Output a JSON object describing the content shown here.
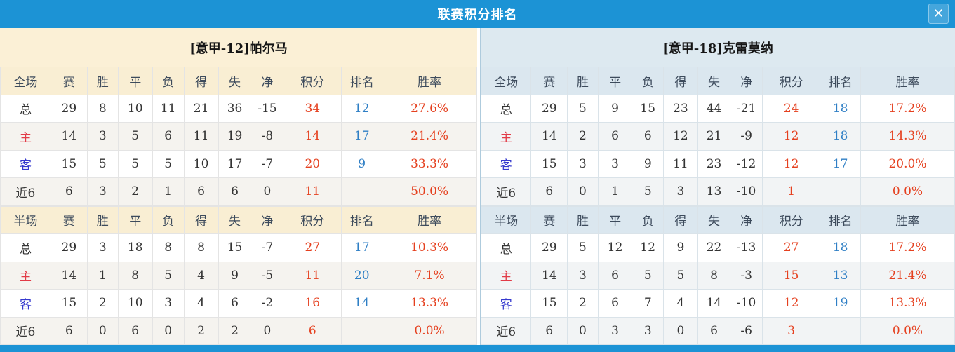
{
  "window": {
    "title": "联赛积分排名",
    "close_icon": "✕"
  },
  "colors": {
    "accent_blue": "#1C93D5",
    "left_header_bg": "#FBF0D6",
    "right_header_bg": "#DDE9F0",
    "value_red": "#E5401F",
    "rank_blue": "#2F7FC5",
    "home_label_red": "#E23B47",
    "away_label_blue": "#3539CE"
  },
  "stat_columns": [
    "赛",
    "胜",
    "平",
    "负",
    "得",
    "失",
    "净",
    "积分",
    "排名",
    "胜率"
  ],
  "teams": [
    {
      "name": "[意甲-12]帕尔马",
      "sections": [
        {
          "scope_label": "全场",
          "rows": [
            {
              "label": "总",
              "type": "total",
              "stats": [
                "29",
                "8",
                "10",
                "11",
                "21",
                "36",
                "-15"
              ],
              "points": "34",
              "rank": "12",
              "rate": "27.6%"
            },
            {
              "label": "主",
              "type": "home",
              "stats": [
                "14",
                "3",
                "5",
                "6",
                "11",
                "19",
                "-8"
              ],
              "points": "14",
              "rank": "17",
              "rate": "21.4%"
            },
            {
              "label": "客",
              "type": "away",
              "stats": [
                "15",
                "5",
                "5",
                "5",
                "10",
                "17",
                "-7"
              ],
              "points": "20",
              "rank": "9",
              "rate": "33.3%"
            },
            {
              "label": "近6",
              "type": "last6",
              "stats": [
                "6",
                "3",
                "2",
                "1",
                "6",
                "6",
                "0"
              ],
              "points": "11",
              "rank": "",
              "rate": "50.0%"
            }
          ]
        },
        {
          "scope_label": "半场",
          "rows": [
            {
              "label": "总",
              "type": "total",
              "stats": [
                "29",
                "3",
                "18",
                "8",
                "8",
                "15",
                "-7"
              ],
              "points": "27",
              "rank": "17",
              "rate": "10.3%"
            },
            {
              "label": "主",
              "type": "home",
              "stats": [
                "14",
                "1",
                "8",
                "5",
                "4",
                "9",
                "-5"
              ],
              "points": "11",
              "rank": "20",
              "rate": "7.1%"
            },
            {
              "label": "客",
              "type": "away",
              "stats": [
                "15",
                "2",
                "10",
                "3",
                "4",
                "6",
                "-2"
              ],
              "points": "16",
              "rank": "14",
              "rate": "13.3%"
            },
            {
              "label": "近6",
              "type": "last6",
              "stats": [
                "6",
                "0",
                "6",
                "0",
                "2",
                "2",
                "0"
              ],
              "points": "6",
              "rank": "",
              "rate": "0.0%"
            }
          ]
        }
      ]
    },
    {
      "name": "[意甲-18]克雷莫纳",
      "sections": [
        {
          "scope_label": "全场",
          "rows": [
            {
              "label": "总",
              "type": "total",
              "stats": [
                "29",
                "5",
                "9",
                "15",
                "23",
                "44",
                "-21"
              ],
              "points": "24",
              "rank": "18",
              "rate": "17.2%"
            },
            {
              "label": "主",
              "type": "home",
              "stats": [
                "14",
                "2",
                "6",
                "6",
                "12",
                "21",
                "-9"
              ],
              "points": "12",
              "rank": "18",
              "rate": "14.3%"
            },
            {
              "label": "客",
              "type": "away",
              "stats": [
                "15",
                "3",
                "3",
                "9",
                "11",
                "23",
                "-12"
              ],
              "points": "12",
              "rank": "17",
              "rate": "20.0%"
            },
            {
              "label": "近6",
              "type": "last6",
              "stats": [
                "6",
                "0",
                "1",
                "5",
                "3",
                "13",
                "-10"
              ],
              "points": "1",
              "rank": "",
              "rate": "0.0%"
            }
          ]
        },
        {
          "scope_label": "半场",
          "rows": [
            {
              "label": "总",
              "type": "total",
              "stats": [
                "29",
                "5",
                "12",
                "12",
                "9",
                "22",
                "-13"
              ],
              "points": "27",
              "rank": "18",
              "rate": "17.2%"
            },
            {
              "label": "主",
              "type": "home",
              "stats": [
                "14",
                "3",
                "6",
                "5",
                "5",
                "8",
                "-3"
              ],
              "points": "15",
              "rank": "13",
              "rate": "21.4%"
            },
            {
              "label": "客",
              "type": "away",
              "stats": [
                "15",
                "2",
                "6",
                "7",
                "4",
                "14",
                "-10"
              ],
              "points": "12",
              "rank": "19",
              "rate": "13.3%"
            },
            {
              "label": "近6",
              "type": "last6",
              "stats": [
                "6",
                "0",
                "3",
                "3",
                "0",
                "6",
                "-6"
              ],
              "points": "3",
              "rank": "",
              "rate": "0.0%"
            }
          ]
        }
      ]
    }
  ]
}
